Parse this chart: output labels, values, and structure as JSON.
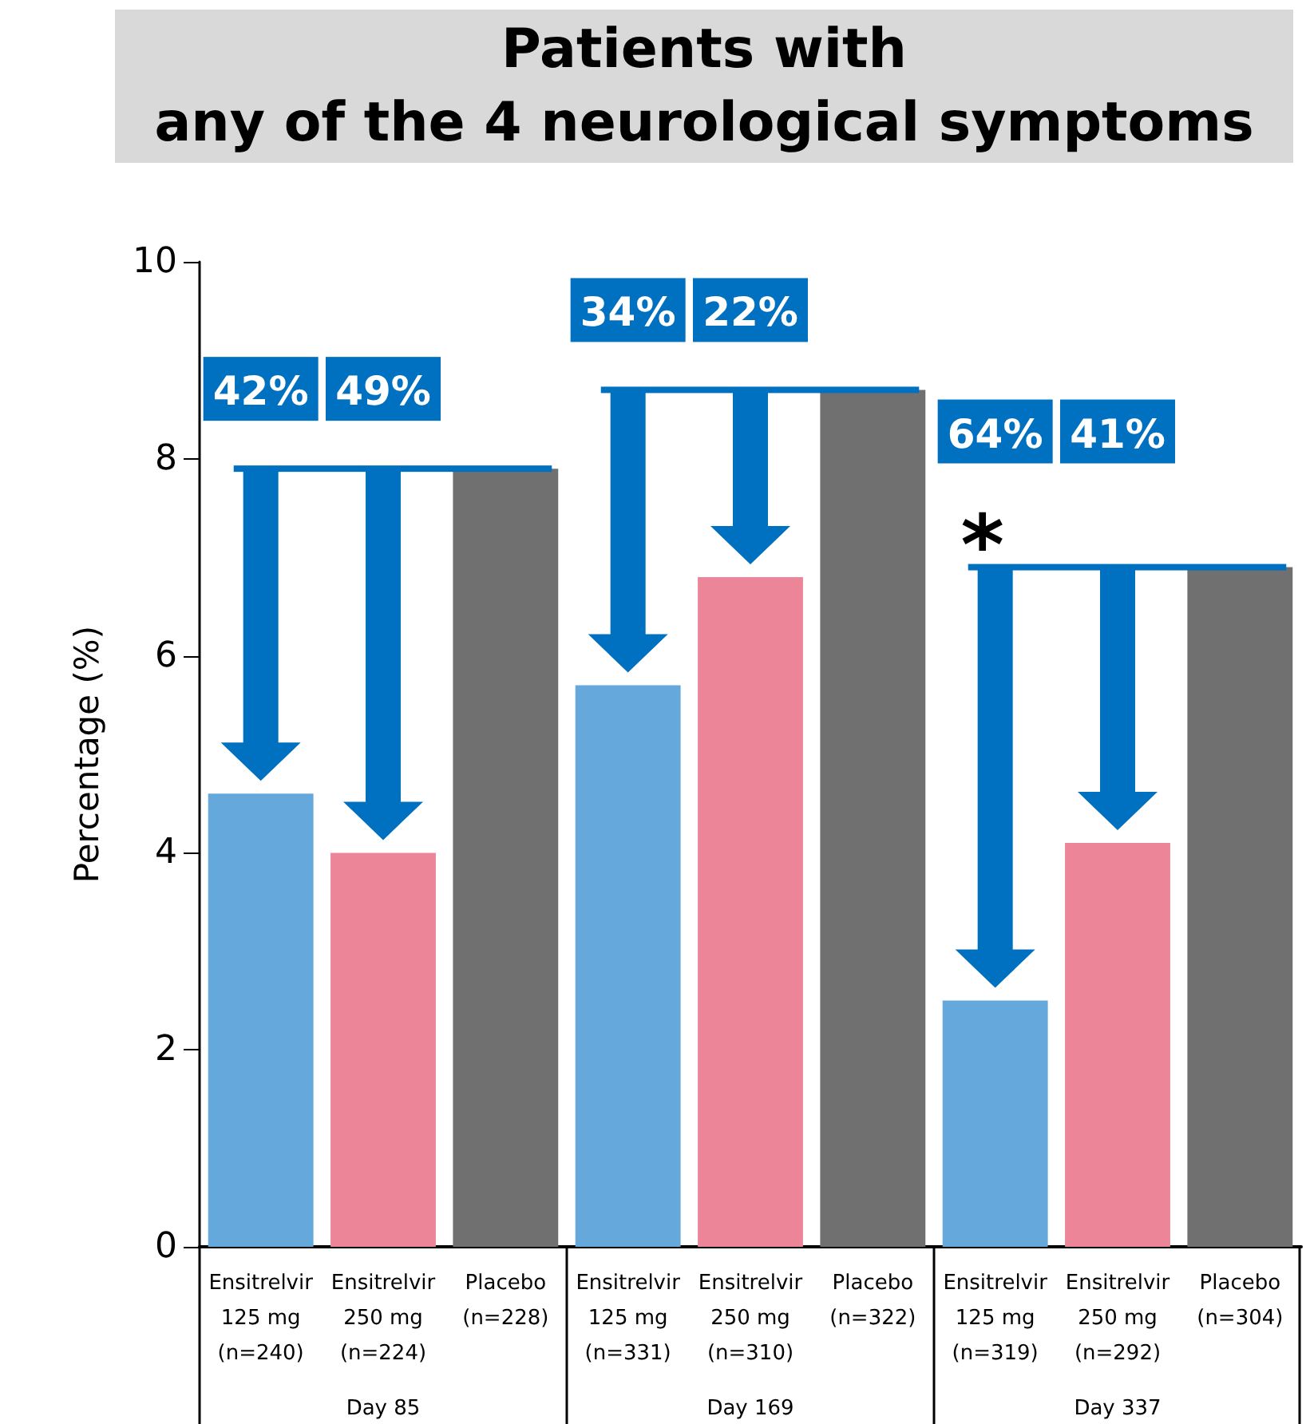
{
  "chart_data": {
    "type": "bar",
    "title": "Patients with\nany of the 4 neurological symptoms",
    "ylabel": "Percentage (%)",
    "categories": [
      "Ensitrelvir\n125 mg\n(n=240)",
      "Ensitrelvir\n250 mg\n(n=224)",
      "Placebo\n(n=228)",
      "Ensitrelvir\n125 mg\n(n=331)",
      "Ensitrelvir\n250 mg\n(n=310)",
      "Placebo\n(n=322)",
      "Ensitrelvir\n125 mg\n(n=319)",
      "Ensitrelvir\n250 mg\n(n=292)",
      "Placebo\n(n=304)"
    ],
    "values": [
      4.6,
      4.0,
      7.9,
      5.7,
      6.8,
      8.7,
      2.5,
      4.1,
      6.9
    ],
    "colors": [
      "#64a8dc",
      "#ec8597",
      "#707070",
      "#64a8dc",
      "#ec8597",
      "#707070",
      "#64a8dc",
      "#ec8597",
      "#707070"
    ],
    "ylim": [
      0,
      10
    ],
    "yticks": [
      0,
      2,
      4,
      6,
      8,
      10
    ],
    "grid": false,
    "annotations": [
      "Day 85",
      "Day 169",
      "Day 337",
      "42%",
      "49%",
      "34%",
      "22%",
      "64%",
      "41%",
      "*"
    ]
  }
}
